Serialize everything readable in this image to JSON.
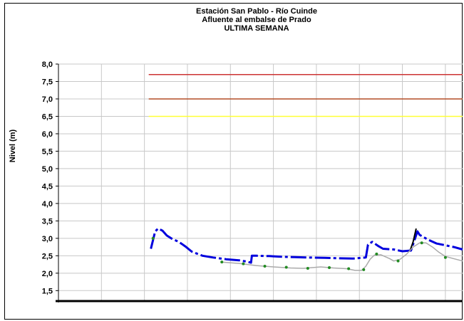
{
  "chart_data": {
    "type": "line",
    "title_lines": [
      "Estación San Pablo - Río Cuinde",
      "Afluente al embalse de Prado",
      "ULTIMA SEMANA"
    ],
    "ylabel": "Nivel (m)",
    "ylim": [
      1.2,
      8.0
    ],
    "yticks": [
      "8,0",
      "7,5",
      "7,0",
      "6,5",
      "6,0",
      "5,5",
      "5,0",
      "4,5",
      "4,0",
      "3,5",
      "3,0",
      "2,5",
      "2,0",
      "1,5"
    ],
    "ytick_values": [
      8.0,
      7.5,
      7.0,
      6.5,
      6.0,
      5.5,
      5.0,
      4.5,
      4.0,
      3.5,
      3.0,
      2.5,
      2.0,
      1.5
    ],
    "grid": true,
    "x_range": [
      0,
      9.4
    ],
    "x_gridlines": [
      1,
      2,
      3,
      4,
      5,
      6,
      7,
      8,
      9
    ],
    "reference_lines": [
      {
        "color": "#cc3333",
        "y": 7.7,
        "x_from": 2.1
      },
      {
        "color": "#b34d26",
        "y": 7.0,
        "x_from": 2.1
      },
      {
        "color": "#ffff33",
        "y": 6.5,
        "x_from": 2.1
      }
    ],
    "series": [
      {
        "color": "#0000dd",
        "style": "dashed-thick",
        "points": [
          [
            2.15,
            2.7
          ],
          [
            2.25,
            3.2
          ],
          [
            2.32,
            3.28
          ],
          [
            2.42,
            3.22
          ],
          [
            2.52,
            3.08
          ],
          [
            2.65,
            2.98
          ],
          [
            2.8,
            2.9
          ],
          [
            2.95,
            2.77
          ],
          [
            3.1,
            2.62
          ],
          [
            3.35,
            2.5
          ],
          [
            3.6,
            2.45
          ],
          [
            3.9,
            2.4
          ],
          [
            4.2,
            2.37
          ],
          [
            4.4,
            2.33
          ],
          [
            4.48,
            2.3
          ],
          [
            4.5,
            2.5
          ],
          [
            4.6,
            2.5
          ],
          [
            4.9,
            2.49
          ],
          [
            5.2,
            2.47
          ],
          [
            5.5,
            2.46
          ],
          [
            5.8,
            2.45
          ],
          [
            6.2,
            2.44
          ],
          [
            6.5,
            2.43
          ],
          [
            6.85,
            2.42
          ],
          [
            7.15,
            2.45
          ],
          [
            7.2,
            2.82
          ],
          [
            7.3,
            2.9
          ],
          [
            7.45,
            2.77
          ],
          [
            7.55,
            2.7
          ],
          [
            7.8,
            2.68
          ],
          [
            8.0,
            2.63
          ],
          [
            8.2,
            2.65
          ],
          [
            8.35,
            3.2
          ],
          [
            8.4,
            3.1
          ],
          [
            8.6,
            2.96
          ],
          [
            8.8,
            2.85
          ],
          [
            9.0,
            2.8
          ],
          [
            9.2,
            2.75
          ],
          [
            9.4,
            2.68
          ]
        ]
      },
      {
        "color": "#000000",
        "style": "solid",
        "points": [
          [
            8.18,
            2.65
          ],
          [
            8.25,
            2.9
          ],
          [
            8.32,
            3.28
          ]
        ]
      },
      {
        "color": "#aaaaaa",
        "style": "solid",
        "points": [
          [
            3.8,
            2.32
          ],
          [
            4.2,
            2.28
          ],
          [
            4.6,
            2.22
          ],
          [
            5.0,
            2.18
          ],
          [
            5.4,
            2.15
          ],
          [
            5.7,
            2.14
          ],
          [
            6.1,
            2.18
          ],
          [
            6.4,
            2.15
          ],
          [
            6.7,
            2.13
          ],
          [
            6.9,
            2.08
          ],
          [
            7.05,
            2.08
          ],
          [
            7.15,
            2.2
          ],
          [
            7.25,
            2.4
          ],
          [
            7.35,
            2.52
          ],
          [
            7.5,
            2.53
          ],
          [
            7.7,
            2.42
          ],
          [
            7.8,
            2.35
          ],
          [
            7.95,
            2.4
          ],
          [
            8.1,
            2.55
          ],
          [
            8.25,
            2.75
          ],
          [
            8.4,
            2.87
          ],
          [
            8.55,
            2.87
          ],
          [
            8.7,
            2.75
          ],
          [
            8.85,
            2.6
          ],
          [
            9.0,
            2.48
          ],
          [
            9.4,
            2.35
          ]
        ]
      },
      {
        "color": "#228b22",
        "style": "markers",
        "points": [
          [
            2.2,
            3.0
          ],
          [
            3.8,
            2.32
          ],
          [
            4.3,
            2.27
          ],
          [
            4.8,
            2.2
          ],
          [
            5.3,
            2.17
          ],
          [
            5.8,
            2.14
          ],
          [
            6.3,
            2.16
          ],
          [
            6.75,
            2.13
          ],
          [
            7.1,
            2.1
          ],
          [
            7.4,
            2.55
          ],
          [
            7.9,
            2.35
          ],
          [
            8.45,
            2.87
          ],
          [
            9.0,
            2.45
          ]
        ]
      }
    ]
  }
}
